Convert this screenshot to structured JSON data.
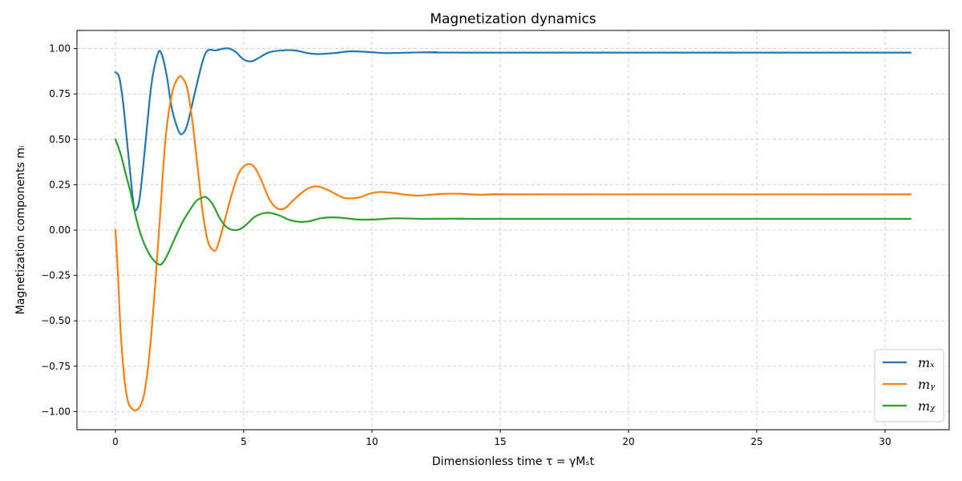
{
  "chart_data": {
    "type": "line",
    "title": "Magnetization dynamics",
    "xlabel": "Dimensionless time τ = γMₛt",
    "ylabel": "Magnetization components mᵢ",
    "xlim": [
      -1.5,
      32.5
    ],
    "ylim": [
      -1.1,
      1.1
    ],
    "xticks": [
      0,
      5,
      10,
      15,
      20,
      25,
      30
    ],
    "yticks": [
      -1.0,
      -0.75,
      -0.5,
      -0.25,
      0.0,
      0.25,
      0.5,
      0.75,
      1.0
    ],
    "ytick_labels": [
      "−1.00",
      "−0.75",
      "−0.50",
      "−0.25",
      "0.00",
      "0.25",
      "0.50",
      "0.75",
      "1.00"
    ],
    "grid": true,
    "legend_position": "bottom-right",
    "series": [
      {
        "name": "mₓ",
        "color": "#1f77b4",
        "points": [
          [
            0,
            0.87
          ],
          [
            0.15,
            0.84
          ],
          [
            0.3,
            0.7
          ],
          [
            0.5,
            0.42
          ],
          [
            0.7,
            0.15
          ],
          [
            0.8,
            0.11
          ],
          [
            0.95,
            0.18
          ],
          [
            1.15,
            0.45
          ],
          [
            1.4,
            0.8
          ],
          [
            1.65,
            0.97
          ],
          [
            1.8,
            0.97
          ],
          [
            2.0,
            0.85
          ],
          [
            2.2,
            0.67
          ],
          [
            2.45,
            0.55
          ],
          [
            2.6,
            0.53
          ],
          [
            2.8,
            0.58
          ],
          [
            3.1,
            0.76
          ],
          [
            3.4,
            0.93
          ],
          [
            3.6,
            0.99
          ],
          [
            3.9,
            0.99
          ],
          [
            4.2,
            1.0
          ],
          [
            4.45,
            1.0
          ],
          [
            4.7,
            0.98
          ],
          [
            5.0,
            0.94
          ],
          [
            5.3,
            0.93
          ],
          [
            5.6,
            0.95
          ],
          [
            6.0,
            0.98
          ],
          [
            6.5,
            0.99
          ],
          [
            7.0,
            0.99
          ],
          [
            7.5,
            0.975
          ],
          [
            7.9,
            0.97
          ],
          [
            8.5,
            0.975
          ],
          [
            9.2,
            0.985
          ],
          [
            10.0,
            0.98
          ],
          [
            10.5,
            0.975
          ],
          [
            11.5,
            0.978
          ],
          [
            12.5,
            0.98
          ],
          [
            14,
            0.978
          ],
          [
            31,
            0.978
          ]
        ]
      },
      {
        "name": "mᵧ",
        "color": "#ff7f0e",
        "points": [
          [
            0,
            0.0
          ],
          [
            0.1,
            -0.25
          ],
          [
            0.2,
            -0.55
          ],
          [
            0.35,
            -0.82
          ],
          [
            0.5,
            -0.95
          ],
          [
            0.7,
            -0.99
          ],
          [
            0.85,
            -0.99
          ],
          [
            1.0,
            -0.96
          ],
          [
            1.15,
            -0.88
          ],
          [
            1.35,
            -0.65
          ],
          [
            1.55,
            -0.3
          ],
          [
            1.75,
            0.1
          ],
          [
            1.95,
            0.5
          ],
          [
            2.2,
            0.75
          ],
          [
            2.45,
            0.84
          ],
          [
            2.6,
            0.84
          ],
          [
            2.8,
            0.78
          ],
          [
            3.0,
            0.6
          ],
          [
            3.2,
            0.35
          ],
          [
            3.4,
            0.1
          ],
          [
            3.6,
            -0.06
          ],
          [
            3.8,
            -0.11
          ],
          [
            3.95,
            -0.1
          ],
          [
            4.2,
            0.02
          ],
          [
            4.5,
            0.18
          ],
          [
            4.8,
            0.31
          ],
          [
            5.1,
            0.36
          ],
          [
            5.4,
            0.35
          ],
          [
            5.7,
            0.27
          ],
          [
            6.0,
            0.17
          ],
          [
            6.3,
            0.12
          ],
          [
            6.6,
            0.12
          ],
          [
            6.9,
            0.16
          ],
          [
            7.3,
            0.21
          ],
          [
            7.6,
            0.235
          ],
          [
            7.9,
            0.24
          ],
          [
            8.3,
            0.22
          ],
          [
            8.7,
            0.19
          ],
          [
            9.0,
            0.175
          ],
          [
            9.5,
            0.18
          ],
          [
            9.9,
            0.2
          ],
          [
            10.3,
            0.21
          ],
          [
            10.8,
            0.205
          ],
          [
            11.3,
            0.195
          ],
          [
            11.8,
            0.19
          ],
          [
            12.3,
            0.195
          ],
          [
            12.8,
            0.2
          ],
          [
            13.5,
            0.2
          ],
          [
            14.2,
            0.195
          ],
          [
            15.2,
            0.198
          ],
          [
            16,
            0.197
          ],
          [
            31,
            0.197
          ]
        ]
      },
      {
        "name": "mᵪ",
        "color": "#2ca02c",
        "points": [
          [
            0,
            0.5
          ],
          [
            0.2,
            0.42
          ],
          [
            0.4,
            0.31
          ],
          [
            0.6,
            0.2
          ],
          [
            0.8,
            0.07
          ],
          [
            1.0,
            -0.03
          ],
          [
            1.2,
            -0.1
          ],
          [
            1.45,
            -0.16
          ],
          [
            1.7,
            -0.19
          ],
          [
            1.85,
            -0.18
          ],
          [
            2.05,
            -0.13
          ],
          [
            2.3,
            -0.05
          ],
          [
            2.6,
            0.04
          ],
          [
            2.9,
            0.11
          ],
          [
            3.15,
            0.16
          ],
          [
            3.4,
            0.18
          ],
          [
            3.55,
            0.18
          ],
          [
            3.8,
            0.14
          ],
          [
            4.05,
            0.07
          ],
          [
            4.3,
            0.02
          ],
          [
            4.6,
            0.0
          ],
          [
            4.85,
            0.005
          ],
          [
            5.1,
            0.03
          ],
          [
            5.4,
            0.07
          ],
          [
            5.7,
            0.09
          ],
          [
            6.0,
            0.095
          ],
          [
            6.4,
            0.08
          ],
          [
            6.8,
            0.055
          ],
          [
            7.2,
            0.045
          ],
          [
            7.6,
            0.05
          ],
          [
            8.0,
            0.065
          ],
          [
            8.5,
            0.07
          ],
          [
            9.0,
            0.065
          ],
          [
            9.5,
            0.058
          ],
          [
            10.0,
            0.058
          ],
          [
            10.5,
            0.062
          ],
          [
            11.0,
            0.065
          ],
          [
            12.0,
            0.062
          ],
          [
            13.5,
            0.063
          ],
          [
            15,
            0.062
          ],
          [
            31,
            0.062
          ]
        ]
      }
    ]
  }
}
